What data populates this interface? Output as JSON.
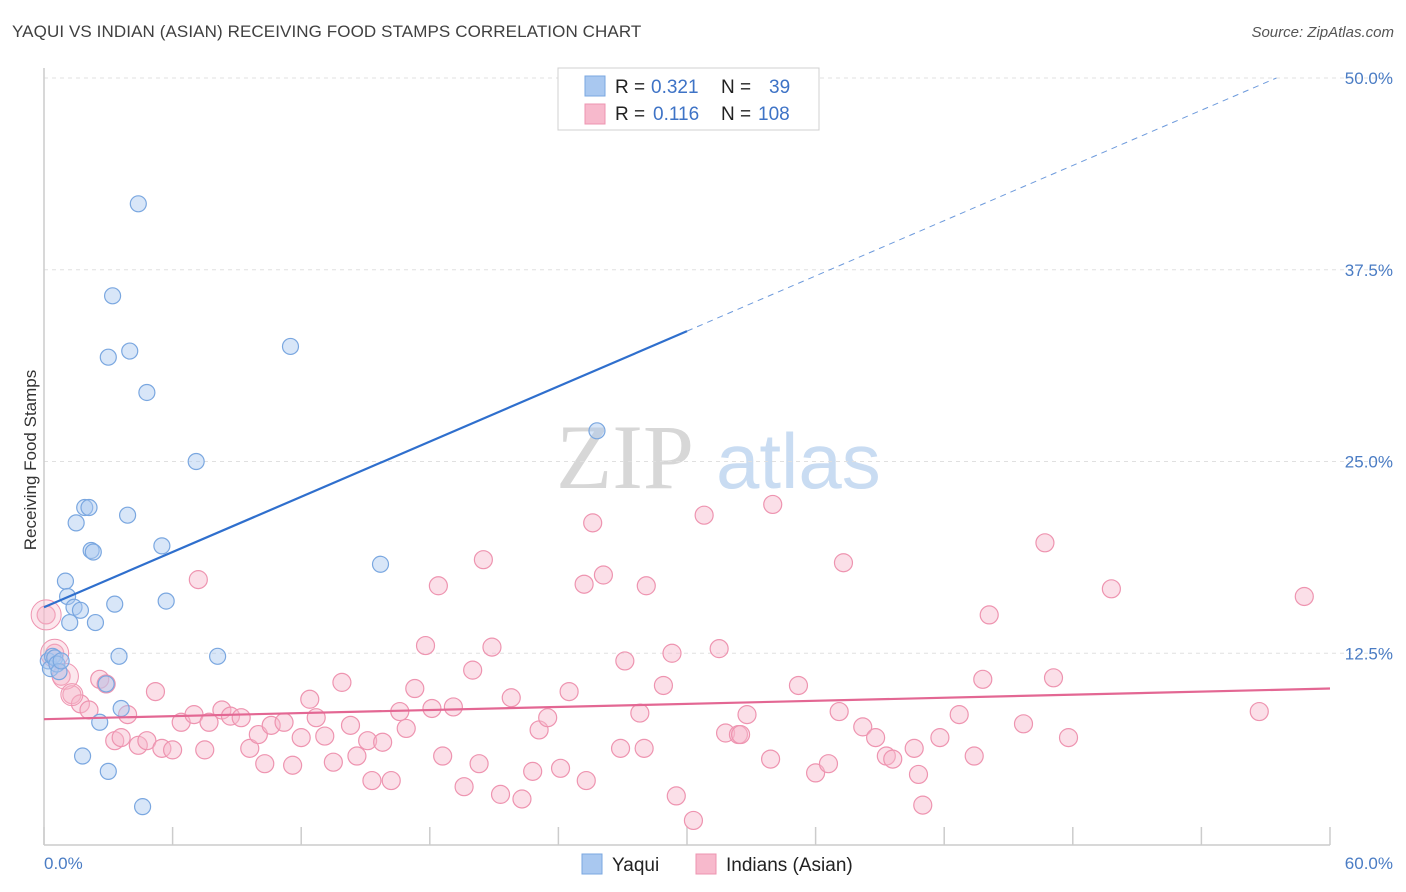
{
  "header": {
    "title": "YAQUI VS INDIAN (ASIAN) RECEIVING FOOD STAMPS CORRELATION CHART",
    "source": "Source: ZipAtlas.com"
  },
  "watermark": {
    "zip": "ZIP",
    "atlas": "atlas"
  },
  "colors": {
    "yaqui_fill": "#a9c8f0",
    "yaqui_stroke": "#7aa7e0",
    "yaqui_line": "#2f6fcd",
    "indian_fill": "#f7b9cc",
    "indian_stroke": "#ee94b0",
    "indian_line": "#e36793",
    "tick_text": "#4a7cc4",
    "grid": "#e0e0e0"
  },
  "legend": {
    "rows": [
      {
        "r_label": "R =",
        "r_value": "0.321",
        "n_label": "N =",
        "n_value": "39"
      },
      {
        "r_label": "R =",
        "r_value": "0.116",
        "n_label": "N =",
        "n_value": "108"
      }
    ]
  },
  "chart_data": {
    "type": "scatter",
    "title": "YAQUI VS INDIAN (ASIAN) RECEIVING FOOD STAMPS CORRELATION CHART",
    "xlabel": "",
    "ylabel": "Receiving Food Stamps",
    "xlim": [
      0,
      60
    ],
    "ylim": [
      0,
      50
    ],
    "x_tick_labels": [
      "0.0%",
      "60.0%"
    ],
    "y_ticks": [
      12.5,
      25.0,
      37.5,
      50.0
    ],
    "y_tick_labels": [
      "12.5%",
      "25.0%",
      "37.5%",
      "50.0%"
    ],
    "grid": true,
    "series": [
      {
        "name": "Yaqui",
        "r": 0.321,
        "n": 39,
        "trend": {
          "x0": 0,
          "y0": 15.5,
          "x1": 30,
          "y1": 33.5,
          "dashed_to_x": 57.5,
          "dashed_to_y": 50
        },
        "points": [
          [
            0.2,
            12.0
          ],
          [
            0.3,
            11.5
          ],
          [
            0.4,
            12.3
          ],
          [
            0.5,
            12.2
          ],
          [
            0.6,
            11.8
          ],
          [
            0.7,
            11.3
          ],
          [
            0.8,
            12.0
          ],
          [
            1.0,
            17.2
          ],
          [
            1.1,
            16.2
          ],
          [
            1.2,
            14.5
          ],
          [
            1.4,
            15.5
          ],
          [
            1.5,
            21.0
          ],
          [
            1.7,
            15.3
          ],
          [
            1.8,
            5.8
          ],
          [
            1.9,
            22.0
          ],
          [
            2.1,
            22.0
          ],
          [
            2.2,
            19.2
          ],
          [
            2.3,
            19.1
          ],
          [
            2.4,
            14.5
          ],
          [
            2.6,
            8.0
          ],
          [
            2.9,
            10.5
          ],
          [
            3.0,
            4.8
          ],
          [
            3.0,
            31.8
          ],
          [
            3.2,
            35.8
          ],
          [
            3.3,
            15.7
          ],
          [
            3.5,
            12.3
          ],
          [
            3.6,
            8.9
          ],
          [
            3.9,
            21.5
          ],
          [
            4.0,
            32.2
          ],
          [
            4.4,
            41.8
          ],
          [
            4.6,
            2.5
          ],
          [
            4.8,
            29.5
          ],
          [
            5.5,
            19.5
          ],
          [
            5.7,
            15.9
          ],
          [
            7.1,
            25.0
          ],
          [
            8.1,
            12.3
          ],
          [
            11.5,
            32.5
          ],
          [
            15.7,
            18.3
          ],
          [
            25.8,
            27.0
          ]
        ]
      },
      {
        "name": "Indians (Asian)",
        "r": 0.116,
        "n": 108,
        "trend": {
          "x0": 0,
          "y0": 8.2,
          "x1": 60,
          "y1": 10.2
        },
        "points": [
          [
            0.1,
            15.0
          ],
          [
            0.5,
            12.5
          ],
          [
            0.8,
            11.0
          ],
          [
            1.3,
            9.8
          ],
          [
            1.7,
            9.2
          ],
          [
            2.1,
            8.8
          ],
          [
            2.6,
            10.8
          ],
          [
            2.9,
            10.5
          ],
          [
            3.3,
            6.8
          ],
          [
            3.6,
            7.0
          ],
          [
            3.9,
            8.5
          ],
          [
            4.4,
            6.5
          ],
          [
            4.8,
            6.8
          ],
          [
            5.2,
            10.0
          ],
          [
            5.5,
            6.3
          ],
          [
            6.0,
            6.2
          ],
          [
            6.4,
            8.0
          ],
          [
            7.0,
            8.5
          ],
          [
            7.2,
            17.3
          ],
          [
            7.5,
            6.2
          ],
          [
            7.7,
            8.0
          ],
          [
            8.3,
            8.8
          ],
          [
            8.7,
            8.4
          ],
          [
            9.2,
            8.3
          ],
          [
            9.6,
            6.3
          ],
          [
            10.0,
            7.2
          ],
          [
            10.3,
            5.3
          ],
          [
            10.6,
            7.8
          ],
          [
            11.2,
            8.0
          ],
          [
            11.6,
            5.2
          ],
          [
            12.0,
            7.0
          ],
          [
            12.4,
            9.5
          ],
          [
            12.7,
            8.3
          ],
          [
            13.1,
            7.1
          ],
          [
            13.5,
            5.4
          ],
          [
            13.9,
            10.6
          ],
          [
            14.3,
            7.8
          ],
          [
            14.6,
            5.8
          ],
          [
            15.1,
            6.8
          ],
          [
            15.3,
            4.2
          ],
          [
            15.8,
            6.7
          ],
          [
            16.2,
            4.2
          ],
          [
            16.6,
            8.7
          ],
          [
            16.9,
            7.6
          ],
          [
            17.3,
            10.2
          ],
          [
            17.8,
            13.0
          ],
          [
            18.1,
            8.9
          ],
          [
            18.6,
            5.8
          ],
          [
            19.1,
            9.0
          ],
          [
            19.6,
            3.8
          ],
          [
            20.0,
            11.4
          ],
          [
            20.3,
            5.3
          ],
          [
            20.9,
            12.9
          ],
          [
            21.3,
            3.3
          ],
          [
            21.8,
            9.6
          ],
          [
            22.3,
            3.0
          ],
          [
            22.8,
            4.8
          ],
          [
            23.1,
            7.5
          ],
          [
            23.5,
            8.3
          ],
          [
            24.1,
            5.0
          ],
          [
            24.5,
            10.0
          ],
          [
            25.3,
            4.2
          ],
          [
            25.6,
            21.0
          ],
          [
            26.1,
            17.6
          ],
          [
            26.9,
            6.3
          ],
          [
            27.1,
            12.0
          ],
          [
            27.8,
            8.6
          ],
          [
            28.0,
            6.3
          ],
          [
            28.9,
            10.4
          ],
          [
            29.3,
            12.5
          ],
          [
            29.5,
            3.2
          ],
          [
            30.3,
            1.6
          ],
          [
            30.8,
            21.5
          ],
          [
            31.5,
            12.8
          ],
          [
            31.8,
            7.3
          ],
          [
            32.4,
            7.2
          ],
          [
            32.8,
            8.5
          ],
          [
            33.9,
            5.6
          ],
          [
            35.2,
            10.4
          ],
          [
            36.0,
            4.7
          ],
          [
            36.6,
            5.3
          ],
          [
            37.1,
            8.7
          ],
          [
            37.3,
            18.4
          ],
          [
            38.2,
            7.7
          ],
          [
            38.8,
            7.0
          ],
          [
            39.3,
            5.8
          ],
          [
            39.6,
            5.6
          ],
          [
            40.6,
            6.3
          ],
          [
            40.8,
            4.6
          ],
          [
            41.0,
            2.6
          ],
          [
            41.8,
            7.0
          ],
          [
            42.7,
            8.5
          ],
          [
            43.4,
            5.8
          ],
          [
            43.8,
            10.8
          ],
          [
            44.1,
            15.0
          ],
          [
            45.7,
            7.9
          ],
          [
            46.7,
            19.7
          ],
          [
            47.1,
            10.9
          ],
          [
            47.8,
            7.0
          ],
          [
            49.8,
            16.7
          ],
          [
            56.7,
            8.7
          ],
          [
            58.8,
            16.2
          ],
          [
            34.0,
            22.2
          ],
          [
            18.4,
            16.9
          ],
          [
            20.5,
            18.6
          ],
          [
            25.2,
            17.0
          ],
          [
            28.1,
            16.9
          ],
          [
            32.5,
            7.2
          ]
        ]
      }
    ]
  }
}
